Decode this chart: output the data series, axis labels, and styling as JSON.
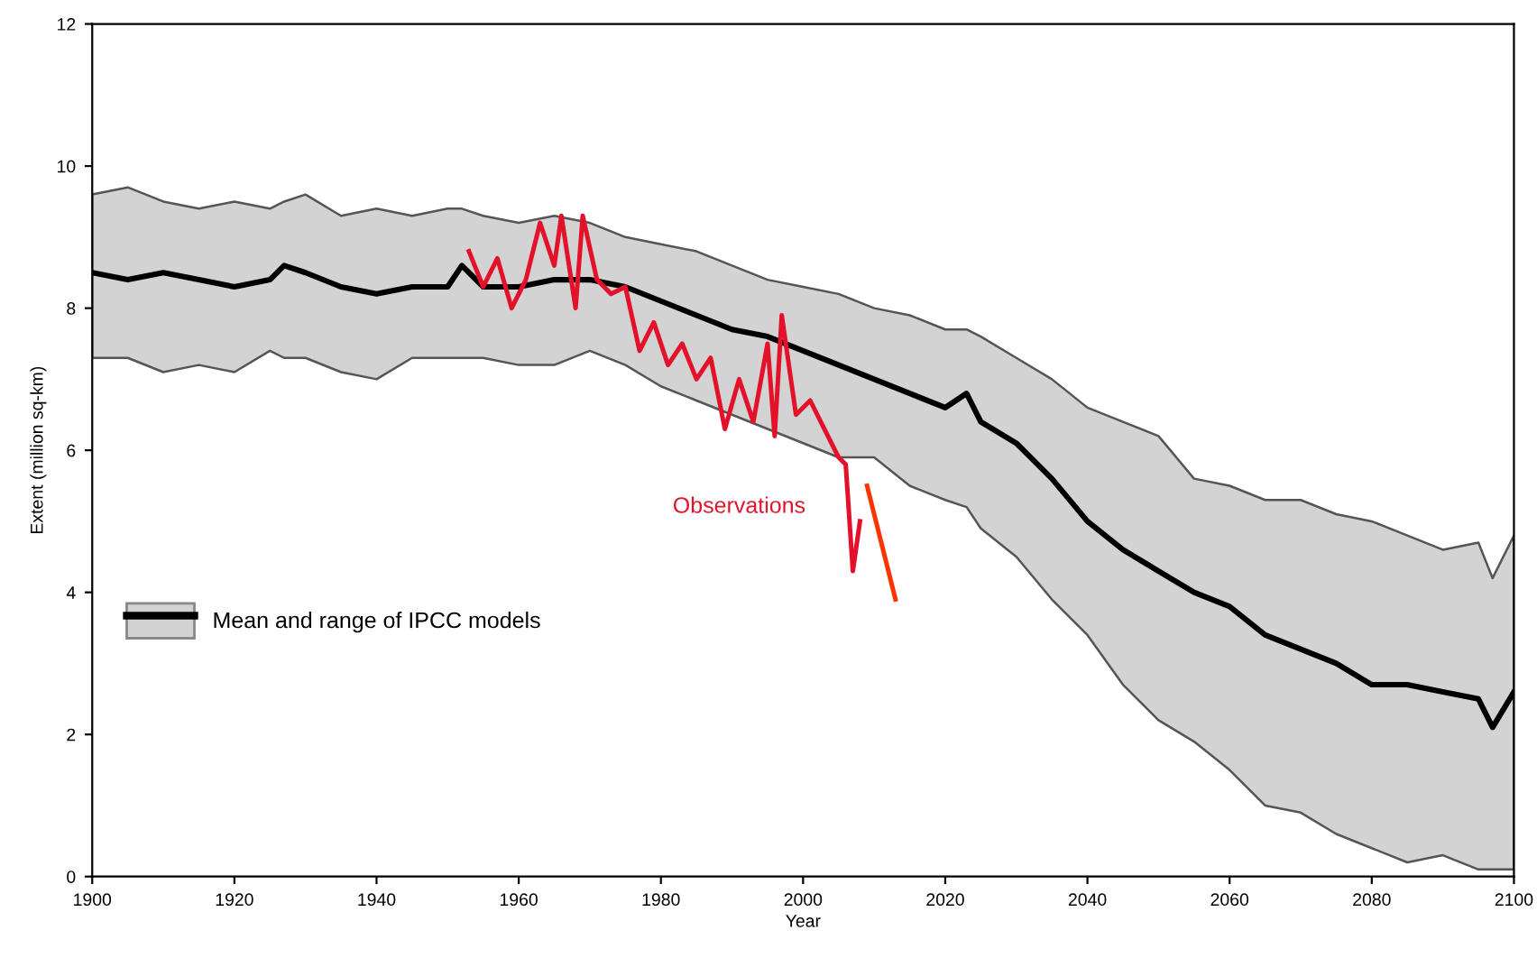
{
  "chart_data": {
    "type": "line",
    "xlabel": "Year",
    "ylabel": "Extent (million sq-km)",
    "xlim": [
      1900,
      2100
    ],
    "xticks": [
      1900,
      1920,
      1940,
      1960,
      1980,
      2000,
      2020,
      2040,
      2060,
      2080,
      2100
    ],
    "ylim": [
      0,
      12
    ],
    "yticks": [
      0,
      2,
      4,
      6,
      8,
      10,
      12
    ],
    "grid": false,
    "legend": "left",
    "marker": "none",
    "line_style": "solid",
    "series": [
      {
        "name": "Mean and range of IPCC models",
        "color": "#000000",
        "x": [
          1900,
          1905,
          1910,
          1915,
          1920,
          1925,
          1927,
          1930,
          1935,
          1940,
          1945,
          1950,
          1952,
          1955,
          1960,
          1965,
          1970,
          1975,
          1980,
          1985,
          1990,
          1995,
          2000,
          2005,
          2010,
          2015,
          2020,
          2023,
          2025,
          2030,
          2035,
          2040,
          2045,
          2050,
          2055,
          2060,
          2065,
          2070,
          2075,
          2080,
          2085,
          2090,
          2095,
          2097,
          2100
        ],
        "values": [
          8.5,
          8.4,
          8.5,
          8.4,
          8.3,
          8.4,
          8.6,
          8.5,
          8.3,
          8.2,
          8.3,
          8.3,
          8.6,
          8.3,
          8.3,
          8.4,
          8.4,
          8.3,
          8.1,
          7.9,
          7.7,
          7.6,
          7.4,
          7.2,
          7.0,
          6.8,
          6.6,
          6.8,
          6.4,
          6.1,
          5.6,
          5.0,
          4.6,
          4.3,
          4.0,
          3.8,
          3.4,
          3.2,
          3.0,
          2.7,
          2.7,
          2.6,
          2.5,
          2.1,
          2.6
        ],
        "upper": [
          9.6,
          9.7,
          9.5,
          9.4,
          9.5,
          9.4,
          9.5,
          9.6,
          9.3,
          9.4,
          9.3,
          9.4,
          9.4,
          9.3,
          9.2,
          9.3,
          9.2,
          9.0,
          8.9,
          8.8,
          8.6,
          8.4,
          8.3,
          8.2,
          8.0,
          7.9,
          7.7,
          7.7,
          7.6,
          7.3,
          7.0,
          6.6,
          6.4,
          6.2,
          5.6,
          5.5,
          5.3,
          5.3,
          5.1,
          5.0,
          4.8,
          4.6,
          4.7,
          4.2,
          4.8
        ],
        "lower": [
          7.3,
          7.3,
          7.1,
          7.2,
          7.1,
          7.4,
          7.3,
          7.3,
          7.1,
          7.0,
          7.3,
          7.3,
          7.3,
          7.3,
          7.2,
          7.2,
          7.4,
          7.2,
          6.9,
          6.7,
          6.5,
          6.3,
          6.1,
          5.9,
          5.9,
          5.5,
          5.3,
          5.2,
          4.9,
          4.5,
          3.9,
          3.4,
          2.7,
          2.2,
          1.9,
          1.5,
          1.0,
          0.9,
          0.6,
          0.4,
          0.2,
          0.3,
          0.1,
          0.1,
          0.1
        ]
      },
      {
        "name": "Observations",
        "color": "#e3122a",
        "x": [
          1953,
          1955,
          1957,
          1959,
          1961,
          1963,
          1965,
          1966,
          1968,
          1969,
          1971,
          1973,
          1975,
          1977,
          1979,
          1981,
          1983,
          1985,
          1987,
          1989,
          1991,
          1993,
          1995,
          1996,
          1997,
          1999,
          2001,
          2003,
          2005,
          2006,
          2007,
          2008
        ],
        "values": [
          8.8,
          8.3,
          8.7,
          8.0,
          8.4,
          9.2,
          8.6,
          9.3,
          8.0,
          9.3,
          8.4,
          8.2,
          8.3,
          7.4,
          7.8,
          7.2,
          7.5,
          7.0,
          7.3,
          6.3,
          7.0,
          6.4,
          7.5,
          6.2,
          7.9,
          6.5,
          6.7,
          6.3,
          5.9,
          5.8,
          4.3,
          5.0
        ]
      },
      {
        "color": "#ff3300",
        "x": [
          2009,
          2013
        ],
        "values": [
          5.5,
          3.9
        ]
      }
    ]
  }
}
